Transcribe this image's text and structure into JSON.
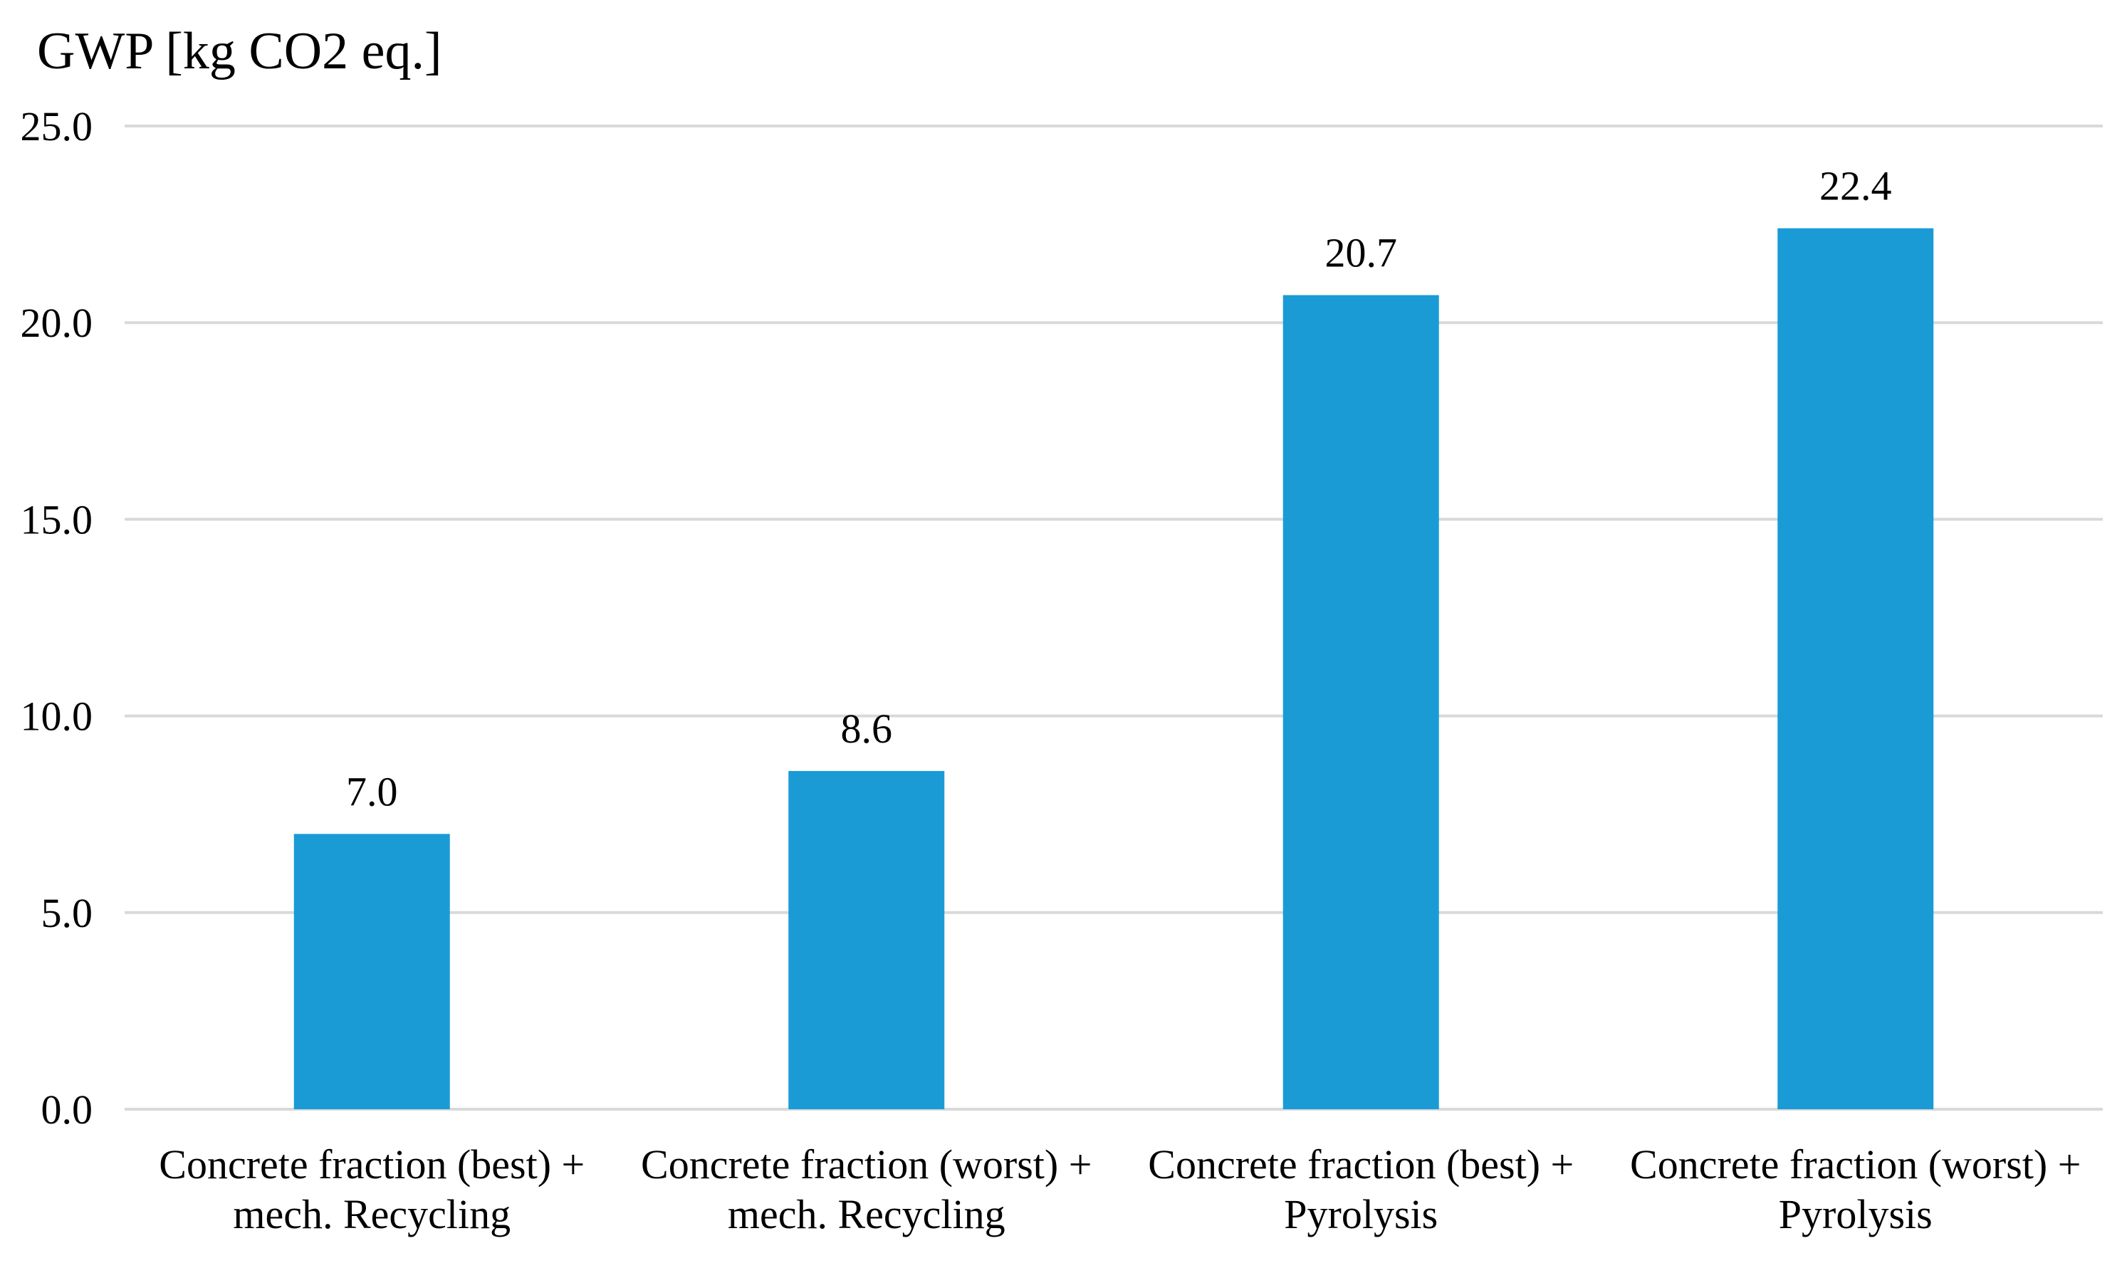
{
  "chart_data": {
    "type": "bar",
    "title": "",
    "ylabel": "GWP [kg CO2 eq.]",
    "xlabel": "",
    "ylim": [
      0,
      25
    ],
    "yticks": [
      0,
      5,
      10,
      15,
      20,
      25
    ],
    "ytick_labels": [
      "0.0",
      "5.0",
      "10.0",
      "15.0",
      "20.0",
      "25.0"
    ],
    "grid": "horizontal",
    "categories": [
      [
        "Concrete fraction (best) +",
        "mech. Recycling"
      ],
      [
        "Concrete fraction (worst) +",
        "mech. Recycling"
      ],
      [
        "Concrete fraction (best) +",
        "Pyrolysis"
      ],
      [
        "Concrete fraction (worst) +",
        "Pyrolysis"
      ]
    ],
    "values": [
      7.0,
      8.6,
      20.7,
      22.4
    ],
    "data_labels": [
      "7.0",
      "8.6",
      "20.7",
      "22.4"
    ],
    "colors": {
      "bar": "#1a9bd6",
      "grid": "#d9d9d9"
    }
  }
}
